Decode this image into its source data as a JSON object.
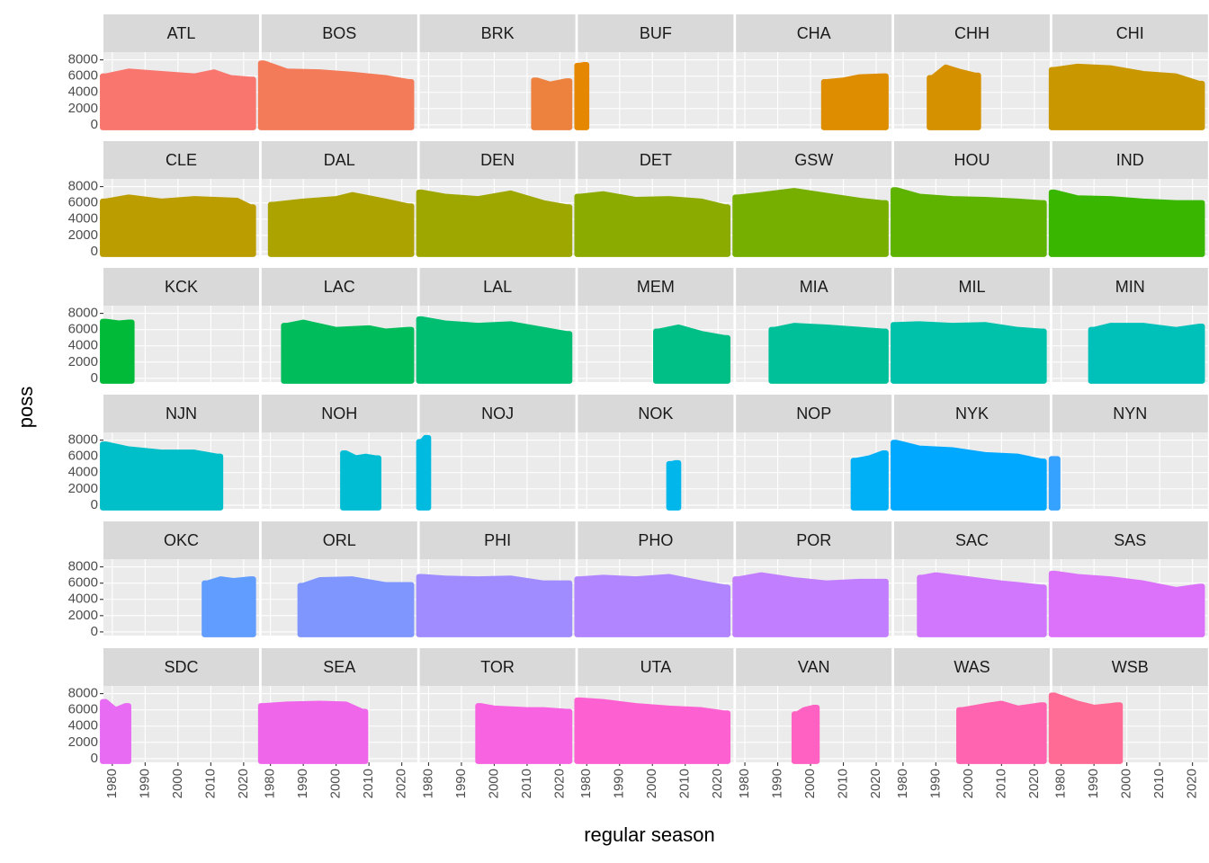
{
  "chart_data": {
    "type": "scatter",
    "xlabel": "regular season",
    "ylabel": "poss",
    "xlim": [
      1977.3,
      2024.7
    ],
    "xticks": [
      1980,
      1990,
      2000,
      2010,
      2020
    ],
    "ylim": [
      -450,
      8950
    ],
    "yticks": [
      0,
      2000,
      4000,
      6000,
      8000
    ],
    "grid": true,
    "series": [
      {
        "name": "ATL",
        "color": "#F8766D",
        "x": [
          1978,
          1985,
          1995,
          2005,
          2011,
          2016,
          2022
        ],
        "values": [
          6000,
          6600,
          6300,
          6000,
          6500,
          5800,
          5600
        ]
      },
      {
        "name": "BOS",
        "color": "#F37B59",
        "x": [
          1978,
          1985,
          1995,
          2005,
          2015,
          2022
        ],
        "values": [
          7600,
          6600,
          6500,
          6200,
          5800,
          5300
        ]
      },
      {
        "name": "BRK",
        "color": "#ED813E",
        "x": [
          2013,
          2017,
          2022
        ],
        "values": [
          5500,
          5000,
          5400
        ]
      },
      {
        "name": "BUF",
        "color": "#E58700",
        "x": [
          1978,
          1979
        ],
        "values": [
          7300,
          7400
        ]
      },
      {
        "name": "CHA",
        "color": "#DE8C00",
        "x": [
          2005,
          2010,
          2015,
          2022
        ],
        "values": [
          5300,
          5500,
          5900,
          6000
        ]
      },
      {
        "name": "CHH",
        "color": "#D69100",
        "x": [
          1989,
          1993,
          1997,
          2002
        ],
        "values": [
          5800,
          7100,
          6600,
          6100
        ]
      },
      {
        "name": "CHI",
        "color": "#C99800",
        "x": [
          1978,
          1985,
          1995,
          2005,
          2015,
          2022
        ],
        "values": [
          6800,
          7200,
          7000,
          6300,
          6000,
          5100
        ]
      },
      {
        "name": "CLE",
        "color": "#BB9D00",
        "x": [
          1978,
          1985,
          1995,
          2005,
          2018,
          2022
        ],
        "values": [
          6200,
          6700,
          6200,
          6500,
          6300,
          5500
        ]
      },
      {
        "name": "DAL",
        "color": "#ACA300",
        "x": [
          1981,
          1990,
          2000,
          2005,
          2015,
          2022
        ],
        "values": [
          5800,
          6200,
          6500,
          7000,
          6200,
          5600
        ]
      },
      {
        "name": "DEN",
        "color": "#9DA700",
        "x": [
          1978,
          1985,
          1995,
          2005,
          2015,
          2022
        ],
        "values": [
          7300,
          6800,
          6500,
          7200,
          6000,
          5500
        ]
      },
      {
        "name": "DET",
        "color": "#8CAB00",
        "x": [
          1978,
          1985,
          1995,
          2005,
          2015,
          2022
        ],
        "values": [
          6800,
          7100,
          6400,
          6500,
          6200,
          5500
        ]
      },
      {
        "name": "GSW",
        "color": "#77AF00",
        "x": [
          1978,
          1985,
          1995,
          2005,
          2015,
          2022
        ],
        "values": [
          6700,
          7000,
          7500,
          6900,
          6300,
          6000
        ]
      },
      {
        "name": "HOU",
        "color": "#5EB300",
        "x": [
          1978,
          1985,
          1995,
          2005,
          2015,
          2022
        ],
        "values": [
          7600,
          6800,
          6500,
          6400,
          6200,
          6000
        ]
      },
      {
        "name": "IND",
        "color": "#39B600",
        "x": [
          1978,
          1985,
          1995,
          2005,
          2015,
          2022
        ],
        "values": [
          7300,
          6600,
          6500,
          6200,
          6000,
          6000
        ]
      },
      {
        "name": "KCK",
        "color": "#00BA38",
        "x": [
          1978,
          1982,
          1985
        ],
        "values": [
          7000,
          6800,
          6900
        ]
      },
      {
        "name": "LAC",
        "color": "#00BC5A",
        "x": [
          1985,
          1990,
          2000,
          2010,
          2015,
          2022
        ],
        "values": [
          6500,
          6900,
          6000,
          6200,
          5800,
          6000
        ]
      },
      {
        "name": "LAL",
        "color": "#00BE71",
        "x": [
          1978,
          1985,
          1995,
          2005,
          2015,
          2022
        ],
        "values": [
          7300,
          6800,
          6500,
          6700,
          6000,
          5500
        ]
      },
      {
        "name": "MEM",
        "color": "#00BF86",
        "x": [
          2002,
          2008,
          2015,
          2022
        ],
        "values": [
          5800,
          6300,
          5500,
          5000
        ]
      },
      {
        "name": "MIA",
        "color": "#00C09A",
        "x": [
          1989,
          1995,
          2005,
          2015,
          2022
        ],
        "values": [
          6000,
          6500,
          6300,
          6000,
          5800
        ]
      },
      {
        "name": "MIL",
        "color": "#00C1AA",
        "x": [
          1978,
          1985,
          1995,
          2005,
          2015,
          2022
        ],
        "values": [
          6600,
          6700,
          6500,
          6600,
          6000,
          5800
        ]
      },
      {
        "name": "MIN",
        "color": "#00C0BA",
        "x": [
          1990,
          1995,
          2005,
          2015,
          2022
        ],
        "values": [
          6000,
          6500,
          6500,
          6000,
          6400
        ]
      },
      {
        "name": "NJN",
        "color": "#00BFC8",
        "x": [
          1978,
          1985,
          1995,
          2005,
          2012
        ],
        "values": [
          7500,
          6900,
          6500,
          6500,
          6000
        ]
      },
      {
        "name": "NOH",
        "color": "#00BDD4",
        "x": [
          2003,
          2006,
          2009,
          2012
        ],
        "values": [
          6400,
          5800,
          6000,
          5800
        ]
      },
      {
        "name": "NOJ",
        "color": "#00BAE0",
        "x": [
          1978,
          1979
        ],
        "values": [
          7800,
          8300
        ]
      },
      {
        "name": "NOK",
        "color": "#00B6EB",
        "x": [
          2006,
          2007
        ],
        "values": [
          5100,
          5200
        ]
      },
      {
        "name": "NOP",
        "color": "#00B0F6",
        "x": [
          2014,
          2018,
          2022
        ],
        "values": [
          5500,
          5800,
          6400
        ]
      },
      {
        "name": "NYK",
        "color": "#00A9FF",
        "x": [
          1978,
          1985,
          1995,
          2005,
          2015,
          2022
        ],
        "values": [
          7700,
          7000,
          6800,
          6200,
          6000,
          5400
        ]
      },
      {
        "name": "NYN",
        "color": "#35A2FF",
        "x": [
          1978
        ],
        "values": [
          5700
        ]
      },
      {
        "name": "OKC",
        "color": "#619CFF",
        "x": [
          2009,
          2013,
          2017,
          2022
        ],
        "values": [
          6000,
          6500,
          6300,
          6500
        ]
      },
      {
        "name": "ORL",
        "color": "#7F96FF",
        "x": [
          1990,
          1995,
          2005,
          2015,
          2022
        ],
        "values": [
          5700,
          6400,
          6500,
          5800,
          5800
        ]
      },
      {
        "name": "PHI",
        "color": "#A08CFF",
        "x": [
          1978,
          1985,
          1995,
          2005,
          2015,
          2022
        ],
        "values": [
          6800,
          6600,
          6500,
          6600,
          6000,
          6000
        ]
      },
      {
        "name": "PHO",
        "color": "#B185FF",
        "x": [
          1978,
          1985,
          1995,
          2005,
          2015,
          2022
        ],
        "values": [
          6500,
          6700,
          6500,
          6800,
          6000,
          5500
        ]
      },
      {
        "name": "POR",
        "color": "#C17EFF",
        "x": [
          1978,
          1985,
          1995,
          2005,
          2015,
          2022
        ],
        "values": [
          6500,
          7000,
          6400,
          6000,
          6200,
          6200
        ]
      },
      {
        "name": "SAC",
        "color": "#D077FE",
        "x": [
          1986,
          1990,
          2000,
          2010,
          2015,
          2022
        ],
        "values": [
          6700,
          7000,
          6500,
          6000,
          5800,
          5500
        ]
      },
      {
        "name": "SAS",
        "color": "#DC71FA",
        "x": [
          1978,
          1985,
          1995,
          2005,
          2015,
          2022
        ],
        "values": [
          7200,
          6800,
          6500,
          6000,
          5200,
          5600
        ]
      },
      {
        "name": "SDC",
        "color": "#E76BF3",
        "x": [
          1978,
          1981,
          1984
        ],
        "values": [
          7000,
          6000,
          6500
        ]
      },
      {
        "name": "SEA",
        "color": "#F066EA",
        "x": [
          1978,
          1985,
          1995,
          2003,
          2008
        ],
        "values": [
          6500,
          6700,
          6800,
          6700,
          5800
        ]
      },
      {
        "name": "TOR",
        "color": "#F763E0",
        "x": [
          1996,
          2000,
          2010,
          2015,
          2022
        ],
        "values": [
          6500,
          6200,
          6000,
          6000,
          5800
        ]
      },
      {
        "name": "UTA",
        "color": "#FD61D1",
        "x": [
          1978,
          1985,
          1995,
          2005,
          2015,
          2022
        ],
        "values": [
          7200,
          7000,
          6500,
          6200,
          6000,
          5600
        ]
      },
      {
        "name": "VAN",
        "color": "#FF61C3",
        "x": [
          1996,
          1998,
          2001
        ],
        "values": [
          5500,
          6000,
          6300
        ]
      },
      {
        "name": "WAS",
        "color": "#FF64B0",
        "x": [
          1998,
          2005,
          2010,
          2015,
          2022
        ],
        "values": [
          6000,
          6500,
          6800,
          6200,
          6600
        ]
      },
      {
        "name": "WSB",
        "color": "#FF6B95",
        "x": [
          1978,
          1985,
          1990,
          1995,
          1997
        ],
        "values": [
          7800,
          6800,
          6300,
          6500,
          6600
        ]
      }
    ]
  }
}
